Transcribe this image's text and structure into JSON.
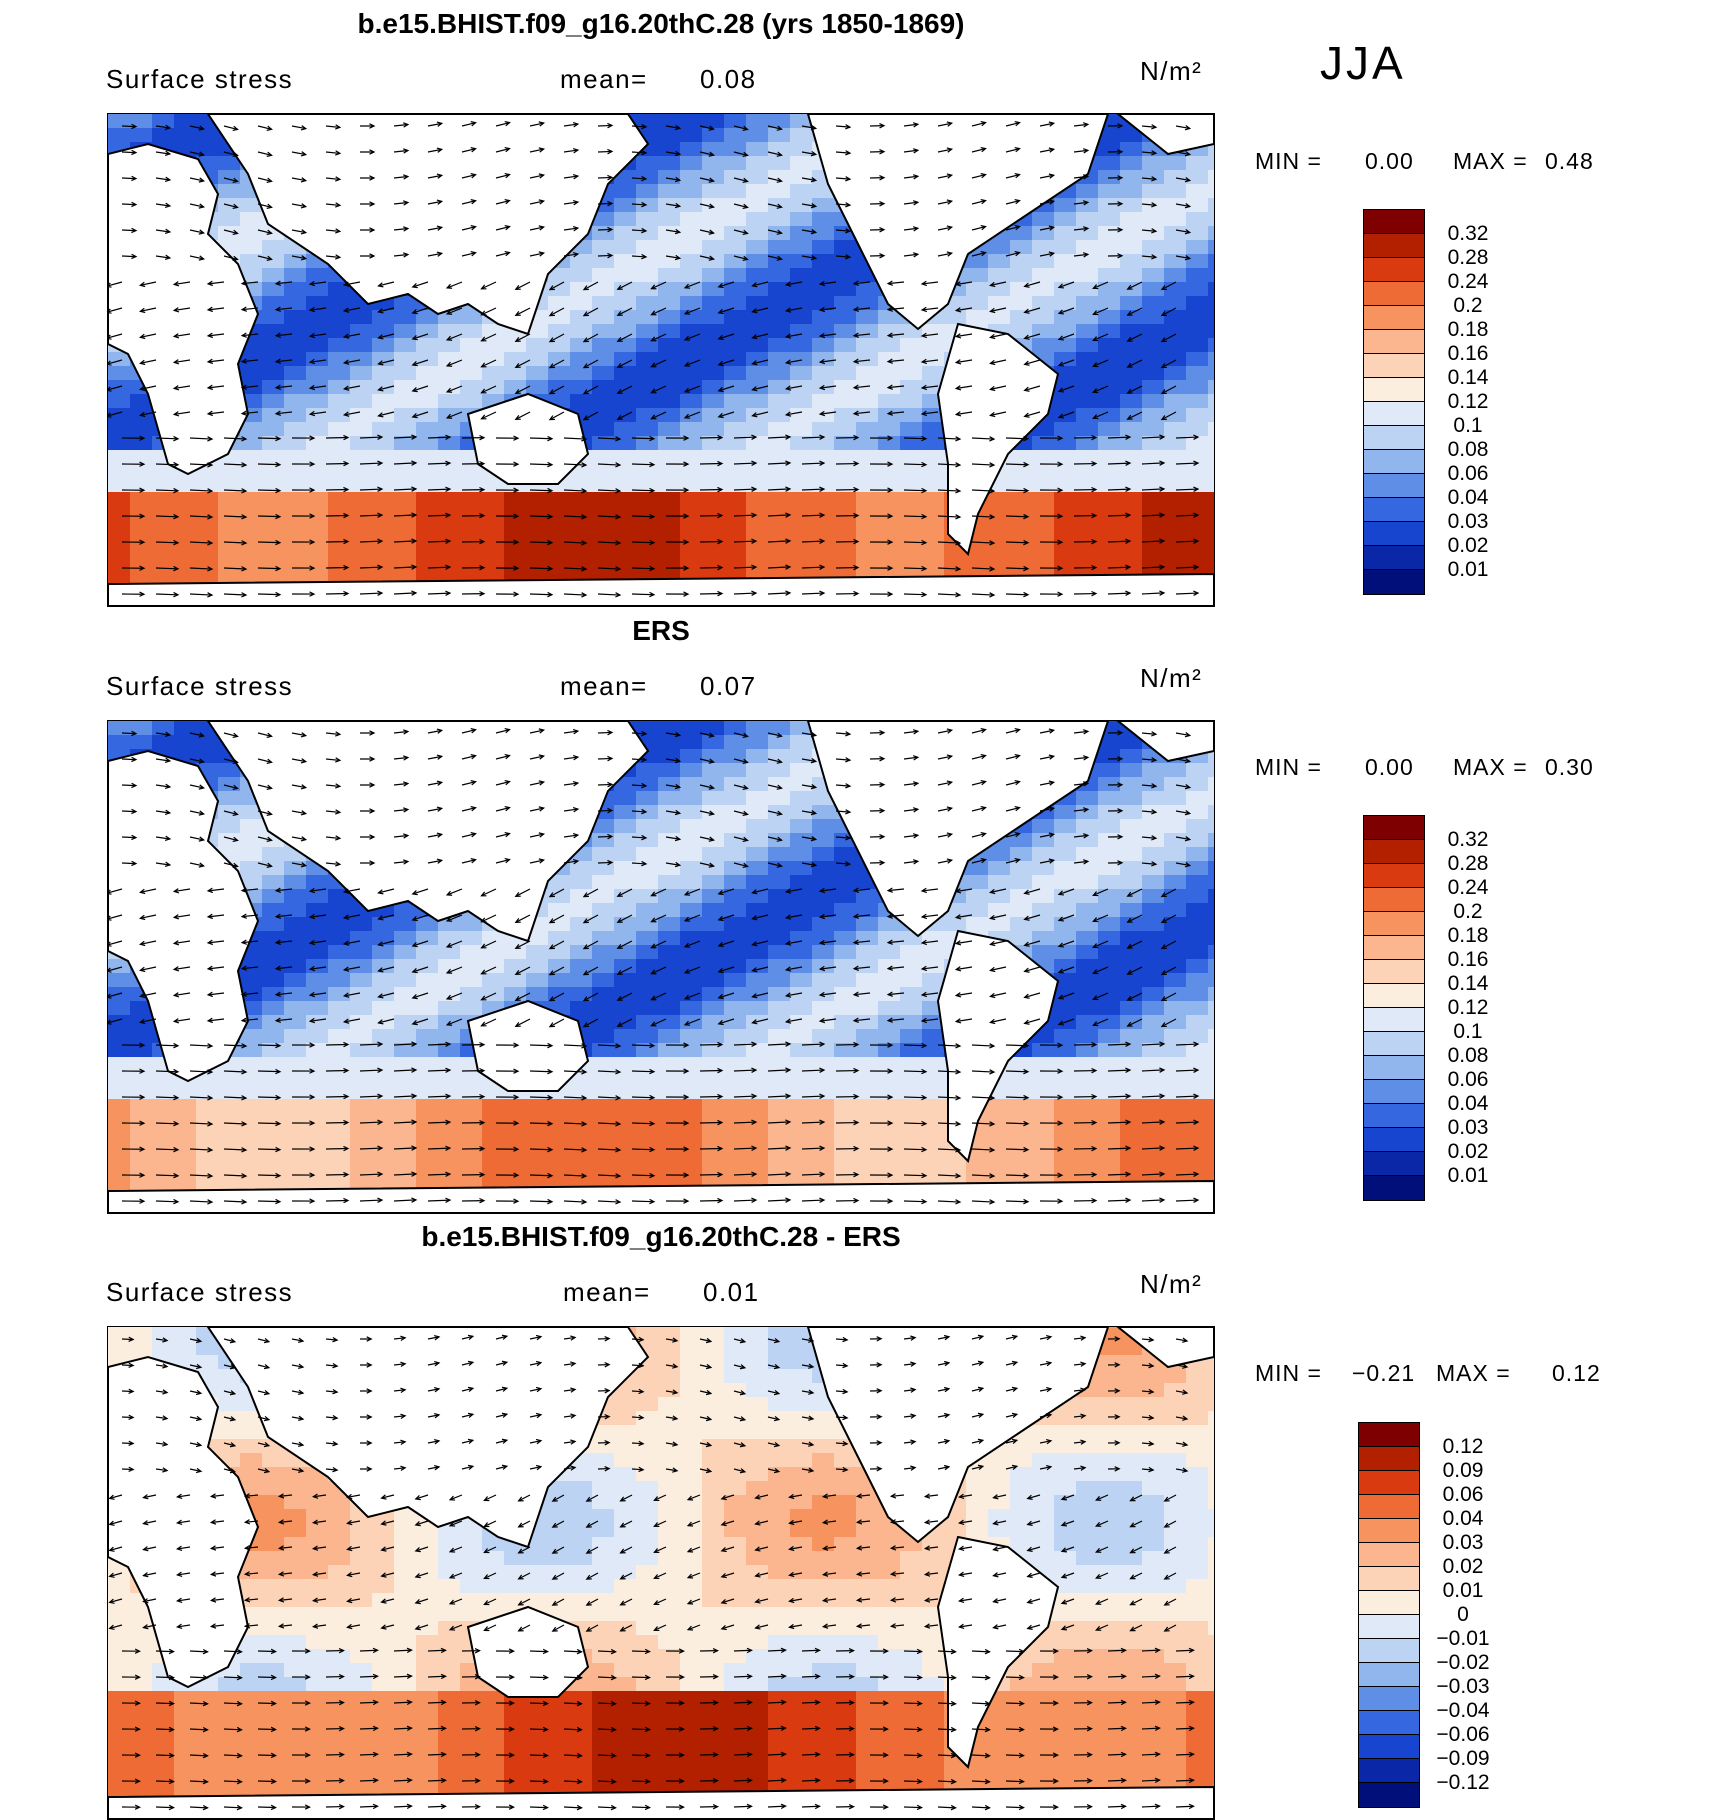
{
  "season": "JJA",
  "colors": {
    "land": "#ffffff",
    "coast": "#000000",
    "arrow": "#000000"
  },
  "chart_data": [
    {
      "type": "heatmap",
      "title": "b.e15.BHIST.f09_g16.20thC.28 (yrs 1850-1869)",
      "variable": "Surface stress",
      "mean_label": "mean=",
      "mean_value": "0.08",
      "units": "N/m²",
      "min_label": "MIN =",
      "min_value": "0.00",
      "max_label": "MAX =",
      "max_value": "0.48",
      "colorbar_levels": [
        "0.32",
        "0.28",
        "0.24",
        "0.2",
        "0.18",
        "0.16",
        "0.14",
        "0.12",
        "0.1",
        "0.08",
        "0.06",
        "0.04",
        "0.03",
        "0.02",
        "0.01"
      ],
      "colorbar_colors": [
        "#7f0000",
        "#b22000",
        "#d93a10",
        "#ee6b35",
        "#f7935f",
        "#fbb690",
        "#fdd3b8",
        "#fbeedf",
        "#dfe9f7",
        "#bcd3f3",
        "#91b6ee",
        "#5e8ee6",
        "#3568e0",
        "#1745cf",
        "#0a27a8",
        "#000f7a"
      ],
      "cbar_top": 209
    },
    {
      "type": "heatmap",
      "title": "ERS",
      "variable": "Surface stress",
      "mean_label": "mean=",
      "mean_value": "0.07",
      "units": "N/m²",
      "min_label": "MIN =",
      "min_value": "0.00",
      "max_label": "MAX =",
      "max_value": "0.30",
      "colorbar_levels": [
        "0.32",
        "0.28",
        "0.24",
        "0.2",
        "0.18",
        "0.16",
        "0.14",
        "0.12",
        "0.1",
        "0.08",
        "0.06",
        "0.04",
        "0.03",
        "0.02",
        "0.01"
      ],
      "colorbar_colors": [
        "#7f0000",
        "#b22000",
        "#d93a10",
        "#ee6b35",
        "#f7935f",
        "#fbb690",
        "#fdd3b8",
        "#fbeedf",
        "#dfe9f7",
        "#bcd3f3",
        "#91b6ee",
        "#5e8ee6",
        "#3568e0",
        "#1745cf",
        "#0a27a8",
        "#000f7a"
      ],
      "cbar_top": 815
    },
    {
      "type": "heatmap",
      "title": "b.e15.BHIST.f09_g16.20thC.28 - ERS",
      "variable": "Surface stress",
      "mean_label": "mean=",
      "mean_value": "0.01",
      "units": "N/m²",
      "min_label": "MIN =",
      "min_value": "−0.21",
      "max_label": "MAX =",
      "max_value": "0.12",
      "colorbar_levels": [
        "0.12",
        "0.09",
        "0.06",
        "0.04",
        "0.03",
        "0.02",
        "0.01",
        "0",
        "−0.01",
        "−0.02",
        "−0.03",
        "−0.04",
        "−0.06",
        "−0.09",
        "−0.12"
      ],
      "colorbar_colors": [
        "#7f0000",
        "#b22000",
        "#d93a10",
        "#ee6b35",
        "#f7935f",
        "#fbb690",
        "#fdd3b8",
        "#fbeedf",
        "#dfe9f7",
        "#bcd3f3",
        "#91b6ee",
        "#5e8ee6",
        "#3568e0",
        "#1745cf",
        "#0a27a8",
        "#000f7a"
      ],
      "cbar_top": 1422
    }
  ]
}
